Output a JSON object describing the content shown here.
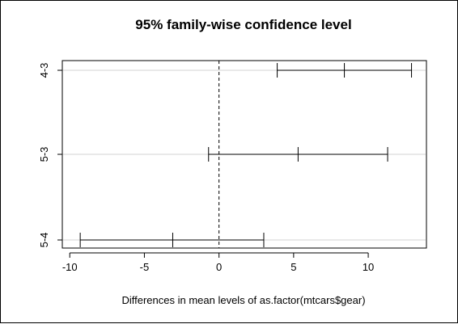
{
  "chart_data": {
    "type": "errorbar",
    "title": "95% family-wise confidence level",
    "xlabel": "Differences in mean levels of as.factor(mtcars$gear)",
    "ylabel": "",
    "xlim": [
      -10.5,
      13.9
    ],
    "x_ticks": [
      -10,
      -5,
      0,
      5,
      10
    ],
    "reference_line": 0,
    "grid": "horizontal",
    "comparisons": [
      {
        "label": "4-3",
        "lower": 3.9,
        "estimate": 8.4,
        "upper": 12.9
      },
      {
        "label": "5-3",
        "lower": -0.7,
        "estimate": 5.3,
        "upper": 11.3
      },
      {
        "label": "5-4",
        "lower": -9.3,
        "estimate": -3.1,
        "upper": 3.0
      }
    ]
  }
}
